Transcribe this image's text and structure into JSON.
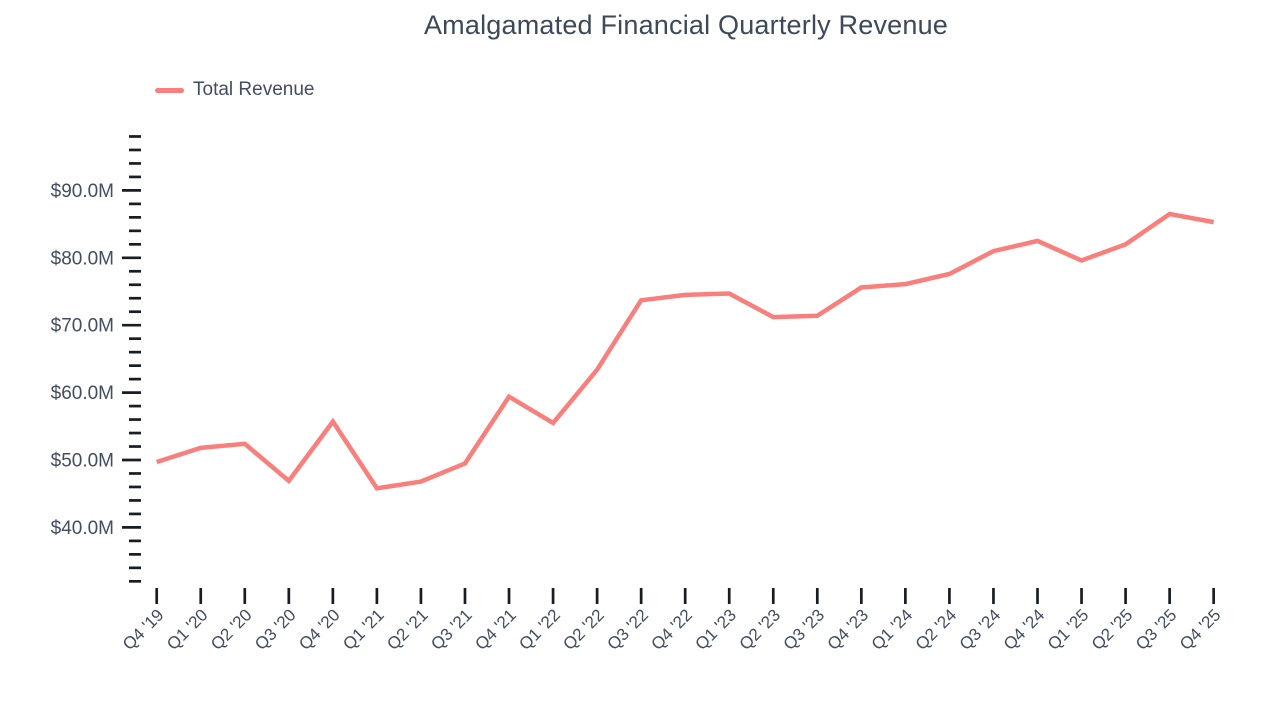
{
  "chart_data": {
    "type": "line",
    "title": "Amalgamated Financial Quarterly Revenue",
    "categories": [
      "Q4 '19",
      "Q1 '20",
      "Q2 '20",
      "Q3 '20",
      "Q4 '20",
      "Q1 '21",
      "Q2 '21",
      "Q3 '21",
      "Q4 '21",
      "Q1 '22",
      "Q2 '22",
      "Q3 '22",
      "Q4 '22",
      "Q1 '23",
      "Q2 '23",
      "Q3 '23",
      "Q4 '23",
      "Q1 '24",
      "Q2 '24",
      "Q3 '24",
      "Q4 '24",
      "Q1 '25",
      "Q2 '25",
      "Q3 '25",
      "Q4 '25"
    ],
    "series": [
      {
        "name": "Total Revenue",
        "color": "#f97f7c",
        "values": [
          49.7,
          51.8,
          52.4,
          46.9,
          55.7,
          45.8,
          46.8,
          49.5,
          59.4,
          55.5,
          63.4,
          73.7,
          74.5,
          74.7,
          71.2,
          71.4,
          75.6,
          76.1,
          77.6,
          81.0,
          82.5,
          79.6,
          82.0,
          86.5,
          85.3
        ]
      }
    ],
    "unit": "USD millions",
    "ylim": [
      32,
      98
    ],
    "y_minor_tick_step": 2,
    "y_major_ticks": [
      40,
      50,
      60,
      70,
      80,
      90
    ],
    "y_tick_labels": [
      "$40.0M",
      "$50.0M",
      "$60.0M",
      "$70.0M",
      "$80.0M",
      "$90.0M"
    ],
    "grid": false,
    "legend_position": "top-left",
    "text_color": "#414d60",
    "tick_color": "#181c24",
    "background": "#ffffff"
  }
}
